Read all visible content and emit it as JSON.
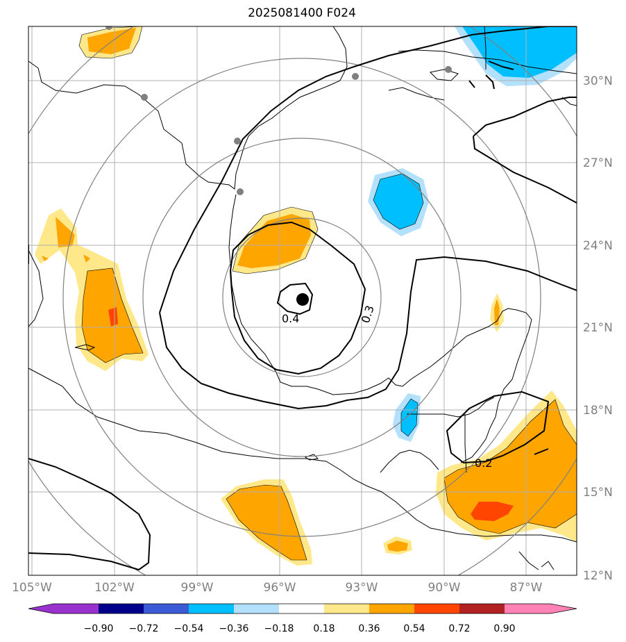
{
  "title": "2025081400 F024",
  "colors": {
    "purple": "#9932cc",
    "navy": "#00008b",
    "royal": "#3a5ad6",
    "deep_sky": "#00bfff",
    "light_blue": "#b3e0fa",
    "white": "#ffffff",
    "pale_yellow": "#ffe88a",
    "orange": "#ffa500",
    "orange_red": "#ff4500",
    "firebrick": "#b22222",
    "pink": "#ff82b4",
    "grid": "#b0b0b0",
    "range_rings": "#808080",
    "tick_labels": "#808080",
    "contour": "#000000",
    "coast": "#000000"
  },
  "map": {
    "lon_labels": [
      "105°W",
      "102°W",
      "99°W",
      "96°W",
      "93°W",
      "90°W",
      "87°W"
    ],
    "lat_labels": [
      "12°N",
      "15°N",
      "18°N",
      "21°N",
      "24°N",
      "27°N",
      "30°N"
    ],
    "contour_labels": [
      "0.4",
      "0.3",
      "0.2"
    ],
    "storm_center": "storm-center-marker"
  },
  "colorbar": {
    "levels": [
      "−0.90",
      "−0.72",
      "−0.54",
      "−0.36",
      "−0.18",
      "0.18",
      "0.36",
      "0.54",
      "0.72",
      "0.90"
    ]
  }
}
